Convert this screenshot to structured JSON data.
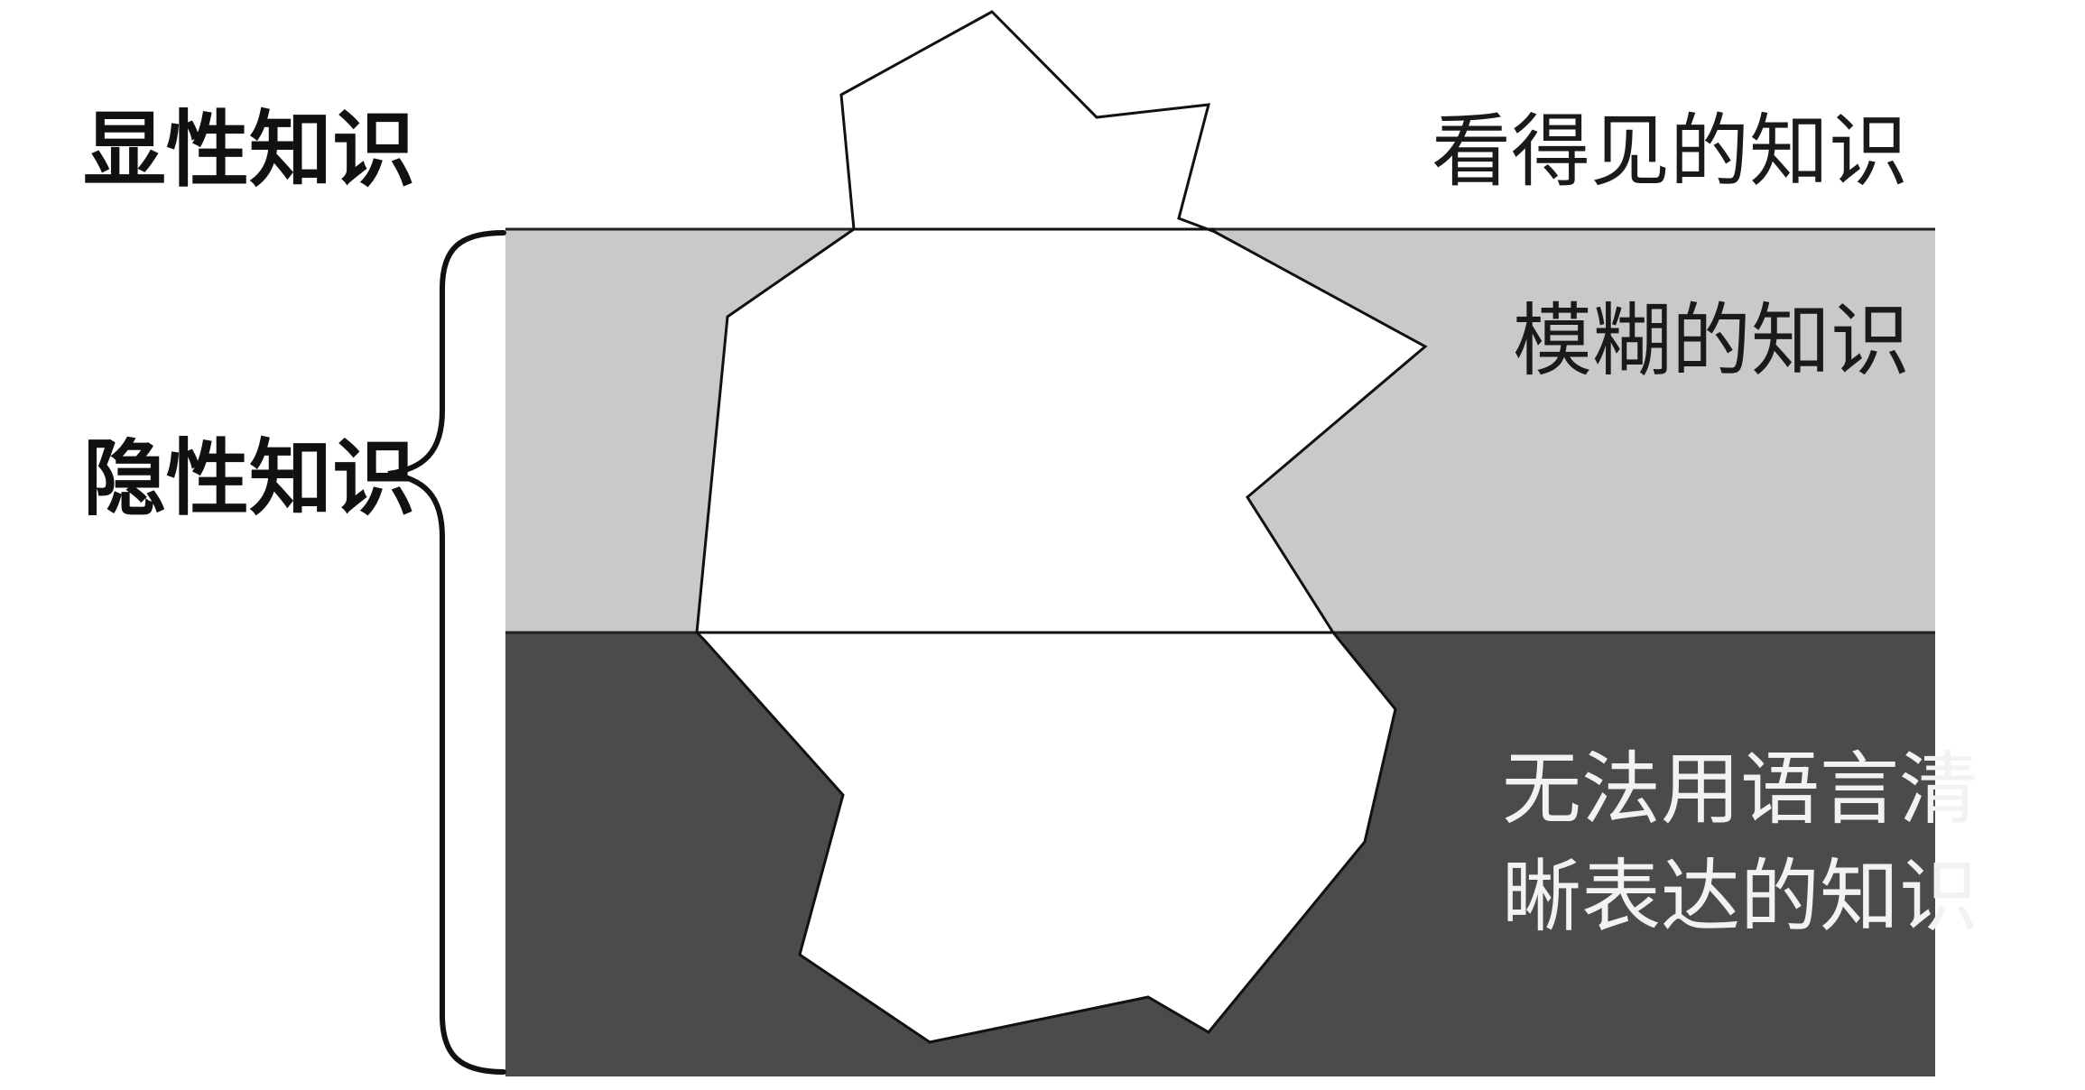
{
  "labels": {
    "explicit_knowledge": "显性知识",
    "tacit_knowledge": "隐性知识",
    "visible_knowledge": "看得见的知识",
    "fuzzy_knowledge": "模糊的知识",
    "inexpressible_line1": "无法用语言清",
    "inexpressible_line2": "晰表达的知识"
  },
  "colors": {
    "background": "#ffffff",
    "fuzzy_band": "#c9c8cb",
    "deep_band": "#4b4a4c",
    "iceberg": "#ffffff",
    "outline": "#111111"
  }
}
